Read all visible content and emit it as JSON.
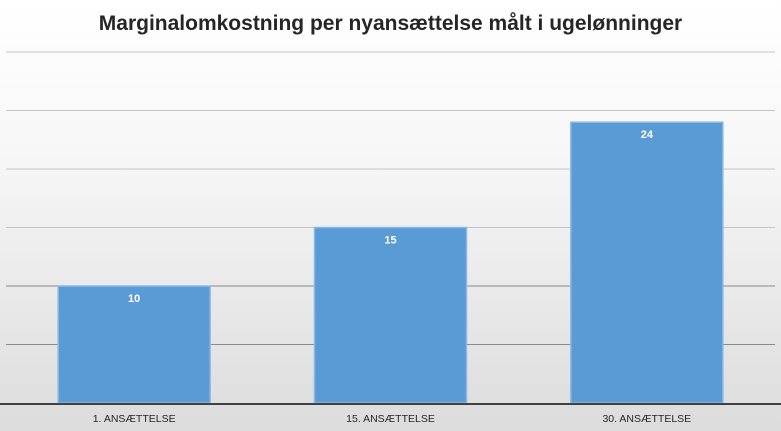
{
  "chart_data": {
    "type": "bar",
    "title": "Marginalomkostning per nyansættelse målt i ugelønninger",
    "categories": [
      "1. ANSÆTTELSE",
      "15. ANSÆTTELSE",
      "30. ANSÆTTELSE"
    ],
    "values": [
      10,
      15,
      24
    ],
    "ylim": [
      0,
      30
    ],
    "grid": true,
    "colors": {
      "bar": "#5b9bd5",
      "bar_edge": "#8ab8e6",
      "grid": "#c4c4c4",
      "axis": "#404040"
    }
  }
}
